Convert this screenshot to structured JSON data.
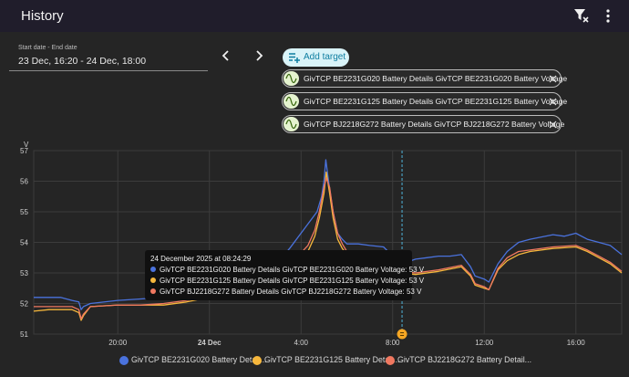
{
  "topbar": {
    "title": "History",
    "filter_icon": "filter-clear-icon",
    "more_icon": "more-vert-icon"
  },
  "date_picker": {
    "label": "Start date - End date",
    "value": "23 Dec, 16:20 - 24 Dec, 18:00"
  },
  "nav": {
    "prev_icon": "chevron-left-icon",
    "next_icon": "chevron-right-icon"
  },
  "add_target": {
    "label": "Add target",
    "icon": "playlist-add-icon"
  },
  "chips": [
    {
      "label": "GivTCP BE2231G020 Battery Details GivTCP BE2231G020 Battery Voltage",
      "icon": "sine-wave-icon"
    },
    {
      "label": "GivTCP BE2231G125 Battery Details GivTCP BE2231G125 Battery Voltage",
      "icon": "sine-wave-icon"
    },
    {
      "label": "GivTCP BJ2218G272 Battery Details GivTCP BJ2218G272 Battery Voltage",
      "icon": "sine-wave-icon"
    }
  ],
  "tooltip": {
    "title": "24 December 2025 at 08:24:29",
    "lines": [
      "GivTCP BE2231G020 Battery Details GivTCP BE2231G020 Battery Voltage: 53 V",
      "GivTCP BE2231G125 Battery Details GivTCP BE2231G125 Battery Voltage: 53 V",
      "GivTCP BJ2218G272 Battery Details GivTCP BJ2218G272 Battery Voltage: 53 V"
    ]
  },
  "colors": {
    "series": [
      "#4a72dd",
      "#f6b73c",
      "#f07860"
    ],
    "accent": "#0e7da0",
    "marker": "#f5a623"
  },
  "chart_data": {
    "type": "line",
    "ylabel": "V",
    "ylim": [
      51,
      57
    ],
    "xlim": [
      16.33,
      42.0
    ],
    "yticks": [
      "51",
      "52",
      "53",
      "54",
      "55",
      "56",
      "57"
    ],
    "xticks": [
      {
        "x": 20,
        "label": "20:00"
      },
      {
        "x": 24,
        "label": "24 Dec"
      },
      {
        "x": 28,
        "label": "4:00"
      },
      {
        "x": 32,
        "label": "8:00"
      },
      {
        "x": 36,
        "label": "12:00"
      },
      {
        "x": 40,
        "label": "16:00"
      }
    ],
    "cursor_x": 32.41,
    "series": [
      {
        "name": "GivTCP BE2231G020 Battery Detail...",
        "points": [
          [
            16.33,
            52.2
          ],
          [
            16.6,
            52.2
          ],
          [
            17.5,
            52.2
          ],
          [
            18.0,
            52.1
          ],
          [
            18.3,
            52.05
          ],
          [
            18.4,
            51.8
          ],
          [
            18.5,
            51.9
          ],
          [
            18.8,
            52.0
          ],
          [
            20.0,
            52.1
          ],
          [
            21.0,
            52.15
          ],
          [
            22.0,
            52.2
          ],
          [
            23.0,
            52.25
          ],
          [
            24.0,
            52.3
          ],
          [
            25.0,
            52.45
          ],
          [
            26.0,
            52.7
          ],
          [
            26.8,
            53.2
          ],
          [
            27.5,
            53.8
          ],
          [
            28.0,
            54.3
          ],
          [
            28.4,
            54.7
          ],
          [
            28.7,
            55.0
          ],
          [
            28.9,
            55.5
          ],
          [
            29.0,
            56.0
          ],
          [
            29.08,
            56.7
          ],
          [
            29.2,
            56.0
          ],
          [
            29.4,
            55.0
          ],
          [
            29.6,
            54.3
          ],
          [
            29.8,
            54.1
          ],
          [
            30.0,
            53.95
          ],
          [
            30.5,
            53.95
          ],
          [
            31.0,
            53.9
          ],
          [
            31.6,
            53.85
          ],
          [
            32.2,
            53.4
          ],
          [
            32.41,
            53.3
          ],
          [
            33.0,
            53.45
          ],
          [
            33.5,
            53.5
          ],
          [
            34.0,
            53.55
          ],
          [
            34.5,
            53.55
          ],
          [
            35.0,
            53.6
          ],
          [
            35.4,
            53.2
          ],
          [
            35.6,
            52.9
          ],
          [
            36.0,
            52.8
          ],
          [
            36.2,
            52.7
          ],
          [
            36.6,
            53.3
          ],
          [
            37.0,
            53.7
          ],
          [
            37.5,
            54.0
          ],
          [
            38.0,
            54.1
          ],
          [
            39.0,
            54.25
          ],
          [
            39.5,
            54.2
          ],
          [
            40.0,
            54.3
          ],
          [
            40.5,
            54.1
          ],
          [
            41.0,
            54.0
          ],
          [
            41.5,
            53.9
          ],
          [
            42.0,
            53.6
          ]
        ]
      },
      {
        "name": "GivTCP BE2231G125 Battery Detail...",
        "points": [
          [
            16.33,
            51.75
          ],
          [
            17.0,
            51.8
          ],
          [
            18.0,
            51.8
          ],
          [
            18.3,
            51.7
          ],
          [
            18.4,
            51.45
          ],
          [
            18.5,
            51.6
          ],
          [
            18.8,
            51.9
          ],
          [
            20.0,
            51.95
          ],
          [
            21.0,
            51.95
          ],
          [
            22.0,
            51.95
          ],
          [
            23.0,
            52.05
          ],
          [
            24.0,
            52.2
          ],
          [
            25.0,
            52.4
          ],
          [
            26.0,
            52.6
          ],
          [
            27.0,
            52.9
          ],
          [
            27.8,
            53.3
          ],
          [
            28.3,
            53.7
          ],
          [
            28.6,
            54.2
          ],
          [
            28.8,
            54.8
          ],
          [
            29.0,
            55.6
          ],
          [
            29.1,
            56.3
          ],
          [
            29.25,
            55.6
          ],
          [
            29.4,
            54.8
          ],
          [
            29.6,
            54.1
          ],
          [
            29.8,
            53.8
          ],
          [
            30.0,
            53.6
          ],
          [
            30.5,
            53.45
          ],
          [
            31.0,
            53.35
          ],
          [
            31.6,
            53.2
          ],
          [
            32.2,
            53.05
          ],
          [
            32.41,
            53.0
          ],
          [
            33.0,
            52.95
          ],
          [
            34.0,
            53.05
          ],
          [
            35.0,
            53.2
          ],
          [
            35.4,
            52.9
          ],
          [
            35.6,
            52.6
          ],
          [
            36.0,
            52.5
          ],
          [
            36.2,
            52.45
          ],
          [
            36.6,
            53.1
          ],
          [
            37.0,
            53.4
          ],
          [
            37.5,
            53.6
          ],
          [
            38.0,
            53.7
          ],
          [
            39.0,
            53.8
          ],
          [
            40.0,
            53.85
          ],
          [
            40.5,
            53.7
          ],
          [
            41.0,
            53.5
          ],
          [
            41.5,
            53.3
          ],
          [
            42.0,
            53.0
          ]
        ]
      },
      {
        "name": "GivTCP BJ2218G272 Battery Detail...",
        "points": [
          [
            16.33,
            51.9
          ],
          [
            17.0,
            51.9
          ],
          [
            18.0,
            51.9
          ],
          [
            18.3,
            51.8
          ],
          [
            18.4,
            51.5
          ],
          [
            18.5,
            51.65
          ],
          [
            18.8,
            51.9
          ],
          [
            20.0,
            51.95
          ],
          [
            21.0,
            51.95
          ],
          [
            22.0,
            52.0
          ],
          [
            23.0,
            52.1
          ],
          [
            24.0,
            52.25
          ],
          [
            25.0,
            52.5
          ],
          [
            26.0,
            52.75
          ],
          [
            27.0,
            53.05
          ],
          [
            27.8,
            53.5
          ],
          [
            28.3,
            53.9
          ],
          [
            28.6,
            54.4
          ],
          [
            28.8,
            55.0
          ],
          [
            29.0,
            55.8
          ],
          [
            29.1,
            56.1
          ],
          [
            29.25,
            55.8
          ],
          [
            29.4,
            55.0
          ],
          [
            29.6,
            54.3
          ],
          [
            29.8,
            53.95
          ],
          [
            30.0,
            53.7
          ],
          [
            30.5,
            53.55
          ],
          [
            31.0,
            53.45
          ],
          [
            31.6,
            53.3
          ],
          [
            32.2,
            53.1
          ],
          [
            32.41,
            53.05
          ],
          [
            33.0,
            53.0
          ],
          [
            34.0,
            53.1
          ],
          [
            35.0,
            53.25
          ],
          [
            35.4,
            52.95
          ],
          [
            35.6,
            52.65
          ],
          [
            36.0,
            52.55
          ],
          [
            36.2,
            52.45
          ],
          [
            36.6,
            53.15
          ],
          [
            37.0,
            53.5
          ],
          [
            37.5,
            53.7
          ],
          [
            38.0,
            53.75
          ],
          [
            39.0,
            53.85
          ],
          [
            40.0,
            53.9
          ],
          [
            40.5,
            53.75
          ],
          [
            41.0,
            53.55
          ],
          [
            41.5,
            53.35
          ],
          [
            42.0,
            53.05
          ]
        ]
      }
    ]
  },
  "legend": [
    {
      "label": "GivTCP BE2231G020 Battery Detail..."
    },
    {
      "label": "GivTCP BE2231G125 Battery Detail..."
    },
    {
      "label": "GivTCP BJ2218G272 Battery Detail..."
    }
  ]
}
